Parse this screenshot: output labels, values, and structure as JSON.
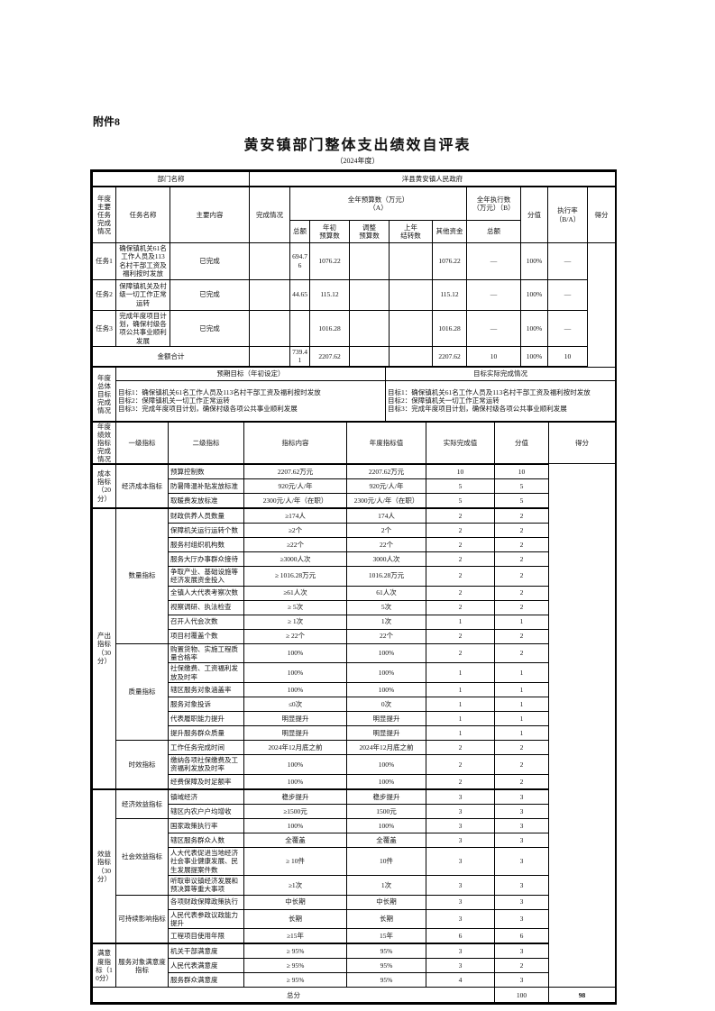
{
  "attachment_label": "附件8",
  "title": "黄安镇部门整体支出绩效自评表",
  "subtitle": "（2024年度）",
  "department": {
    "label": "部门名称",
    "value": "洋县黄安镇人民政府"
  },
  "tasks": {
    "section_label": "年度主要任务完成情况",
    "headers": {
      "name": "任务名称",
      "content": "主要内容",
      "status": "完成情况",
      "budget_group": "全年预算数（万元）\n（A）",
      "exec_group": "全年执行数\n（万元）（B）",
      "total": "总额",
      "initial": "年初\n预算数",
      "adjusted": "调整\n预算数",
      "carryover": "上年\n结转数",
      "other": "其他资金",
      "exec_total": "总额",
      "points": "分值",
      "rate": "执行率\n（B/A）",
      "score": "得分"
    },
    "rows": [
      {
        "name": "任务1",
        "content": "确保镇机关61名工作人员及113名村干部工资及福利按时发放",
        "status": "已完成",
        "total_a": "",
        "initial": "694.76",
        "adjusted": "1076.22",
        "carryover": "",
        "other": "",
        "total_b": "1076.22",
        "points": "—",
        "rate": "100%",
        "score": "—"
      },
      {
        "name": "任务2",
        "content": "保障镇机关及村级一切工作正常运转",
        "status": "已完成",
        "total_a": "",
        "initial": "44.65",
        "adjusted": "115.12",
        "carryover": "",
        "other": "",
        "total_b": "115.12",
        "points": "—",
        "rate": "100%",
        "score": "—"
      },
      {
        "name": "任务3",
        "content": "完成年度项目计划，确保村级各项公共事业顺利发展",
        "status": "已完成",
        "total_a": "",
        "initial": "",
        "adjusted": "1016.28",
        "carryover": "",
        "other": "",
        "total_b": "1016.28",
        "points": "—",
        "rate": "100%",
        "score": "—"
      }
    ],
    "summary": {
      "label": "金额合计",
      "total_a": "",
      "initial": "739.41",
      "adjusted": "2207.62",
      "carryover": "",
      "other": "",
      "total_b": "2207.62",
      "points": "10",
      "rate": "100%",
      "score": "10"
    }
  },
  "goals": {
    "section_label": "年度总体目标完成情况",
    "expected_header": "预期目标（年初设定）",
    "actual_header": "目标实际完成情况",
    "expected": [
      "目标1：确保镇机关61名工作人员及113名村干部工资及福利按时发放",
      "目标2：保障镇机关一切工作正常运转",
      "目标3：完成年度项目计划，确保村级各项公共事业顺利发展"
    ],
    "actual": [
      "目标1：确保镇机关61名工作人员及113名村干部工资及福利按时发放",
      "目标2：保障镇机关一切工作正常运转",
      "目标3：完成年度项目计划，确保村级各项公共事业顺利发展"
    ]
  },
  "indicators": {
    "section_label": "年度绩效指标完成情况",
    "headers": {
      "l1": "一级指标",
      "l2": "二级指标",
      "content": "指标内容",
      "target": "年度指标值",
      "actual": "实际完成值",
      "points": "分值",
      "score": "得分"
    },
    "groups": [
      {
        "level1": "成本指标（20分）",
        "subgroups": [
          {
            "level2": "经济成本指标",
            "rows": [
              {
                "content": "预算控制数",
                "target": "2207.62万元",
                "actual": "2207.62万元",
                "points": "10",
                "score": "10"
              },
              {
                "content": "防暑降温补贴发放标准",
                "target": "920元/人/年",
                "actual": "920元/人/年",
                "points": "5",
                "score": "5"
              },
              {
                "content": "取暖费发放标准",
                "target": "2300元/人/年（在职）",
                "actual": "2300元/人/年（在职）",
                "points": "5",
                "score": "5"
              }
            ]
          }
        ]
      },
      {
        "level1": "产出指标（30分）",
        "subgroups": [
          {
            "level2": "数量指标",
            "rows": [
              {
                "content": "财政供养人员数量",
                "target": "≥174人",
                "actual": "174人",
                "points": "2",
                "score": "2"
              },
              {
                "content": "保障机关运行运转个数",
                "target": "≥2个",
                "actual": "2个",
                "points": "2",
                "score": "2"
              },
              {
                "content": "服务村组织机构数",
                "target": "≥22个",
                "actual": "22个",
                "points": "2",
                "score": "2"
              },
              {
                "content": "服务大厅办事群众接待",
                "target": "≥3000人次",
                "actual": "3000人次",
                "points": "2",
                "score": "2"
              },
              {
                "content": "争取产业、基础设施等经济发展资金投入",
                "target": "≥ 1016.28万元",
                "actual": "1016.28万元",
                "points": "2",
                "score": "2"
              },
              {
                "content": "全镇人大代表考察次数",
                "target": "≥61人次",
                "actual": "61人次",
                "points": "2",
                "score": "2"
              },
              {
                "content": "视察调研、执法检查",
                "target": "≥ 5次",
                "actual": "5次",
                "points": "2",
                "score": "2"
              },
              {
                "content": "召开人代会次数",
                "target": "≥ 1次",
                "actual": "1次",
                "points": "1",
                "score": "1"
              },
              {
                "content": "项目村覆盖个数",
                "target": "≥ 22个",
                "actual": "22个",
                "points": "2",
                "score": "2"
              }
            ]
          },
          {
            "level2": "质量指标",
            "rows": [
              {
                "content": "购置货物、实施工程质量合格率",
                "target": "100%",
                "actual": "100%",
                "points": "2",
                "score": "2"
              },
              {
                "content": "社保缴费、工资福利发放及时率",
                "target": "100%",
                "actual": "100%",
                "points": "1",
                "score": "1"
              },
              {
                "content": "辖区服务对象涵盖率",
                "target": "100%",
                "actual": "100%",
                "points": "1",
                "score": "1"
              },
              {
                "content": "服务对象投诉",
                "target": "≤0次",
                "actual": "0次",
                "points": "1",
                "score": "1"
              },
              {
                "content": "代表履职能力提升",
                "target": "明显提升",
                "actual": "明显提升",
                "points": "1",
                "score": "1"
              },
              {
                "content": "提升服务群众质量",
                "target": "明显提升",
                "actual": "明显提升",
                "points": "1",
                "score": "1"
              }
            ]
          },
          {
            "level2": "时效指标",
            "rows": [
              {
                "content": "工作任务完成时间",
                "target": "2024年12月底之前",
                "actual": "2024年12月底之前",
                "points": "2",
                "score": "2"
              },
              {
                "content": "缴纳各项社保缴费及工资福利发放及时率",
                "target": "100%",
                "actual": "100%",
                "points": "2",
                "score": "2"
              },
              {
                "content": "经费保障及时足额率",
                "target": "100%",
                "actual": "100%",
                "points": "2",
                "score": "2"
              }
            ]
          }
        ]
      },
      {
        "level1": "效益指标（30分）",
        "subgroups": [
          {
            "level2": "经济效益指标",
            "rows": [
              {
                "content": "镇域经济",
                "target": "稳步提升",
                "actual": "稳步提升",
                "points": "3",
                "score": "3"
              },
              {
                "content": "辖区内农户户均增收",
                "target": "≥1500元",
                "actual": "1500元",
                "points": "3",
                "score": "3"
              }
            ]
          },
          {
            "level2": "社会效益指标",
            "rows": [
              {
                "content": "国家政策执行率",
                "target": "100%",
                "actual": "100%",
                "points": "3",
                "score": "3"
              },
              {
                "content": "辖区服务群众人数",
                "target": "全覆盖",
                "actual": "全覆盖",
                "points": "3",
                "score": "3"
              },
              {
                "content": "人大代表促进当地经济社会事业健康发展、民生发展提案件数",
                "target": "≥ 10件",
                "actual": "10件",
                "points": "3",
                "score": "3"
              },
              {
                "content": "听取审议镇经济发展和预决算等重大事项",
                "target": "≥1次",
                "actual": "1次",
                "points": "3",
                "score": "3"
              }
            ]
          },
          {
            "level2": "可持续影响指标",
            "rows": [
              {
                "content": "各项财政保障政策执行",
                "target": "中长期",
                "actual": "中长期",
                "points": "3",
                "score": "3"
              },
              {
                "content": "人民代表参政议政能力提升",
                "target": "长期",
                "actual": "长期",
                "points": "3",
                "score": "3"
              },
              {
                "content": "工程项目使用年限",
                "target": "≥15年",
                "actual": "15年",
                "points": "6",
                "score": "6"
              }
            ]
          }
        ]
      },
      {
        "level1": "满意度指标（10分）",
        "subgroups": [
          {
            "level2": "服务对象满意度指标",
            "rows": [
              {
                "content": "机关干部满意度",
                "target": "≥ 95%",
                "actual": "95%",
                "points": "3",
                "score": "3"
              },
              {
                "content": "人民代表满意度",
                "target": "≥ 95%",
                "actual": "95%",
                "points": "3",
                "score": "2"
              },
              {
                "content": "服务群众满意度",
                "target": "≥ 95%",
                "actual": "95%",
                "points": "4",
                "score": "3"
              }
            ]
          }
        ]
      }
    ],
    "total_row": {
      "label": "总分",
      "points": "100",
      "score": "98"
    }
  }
}
